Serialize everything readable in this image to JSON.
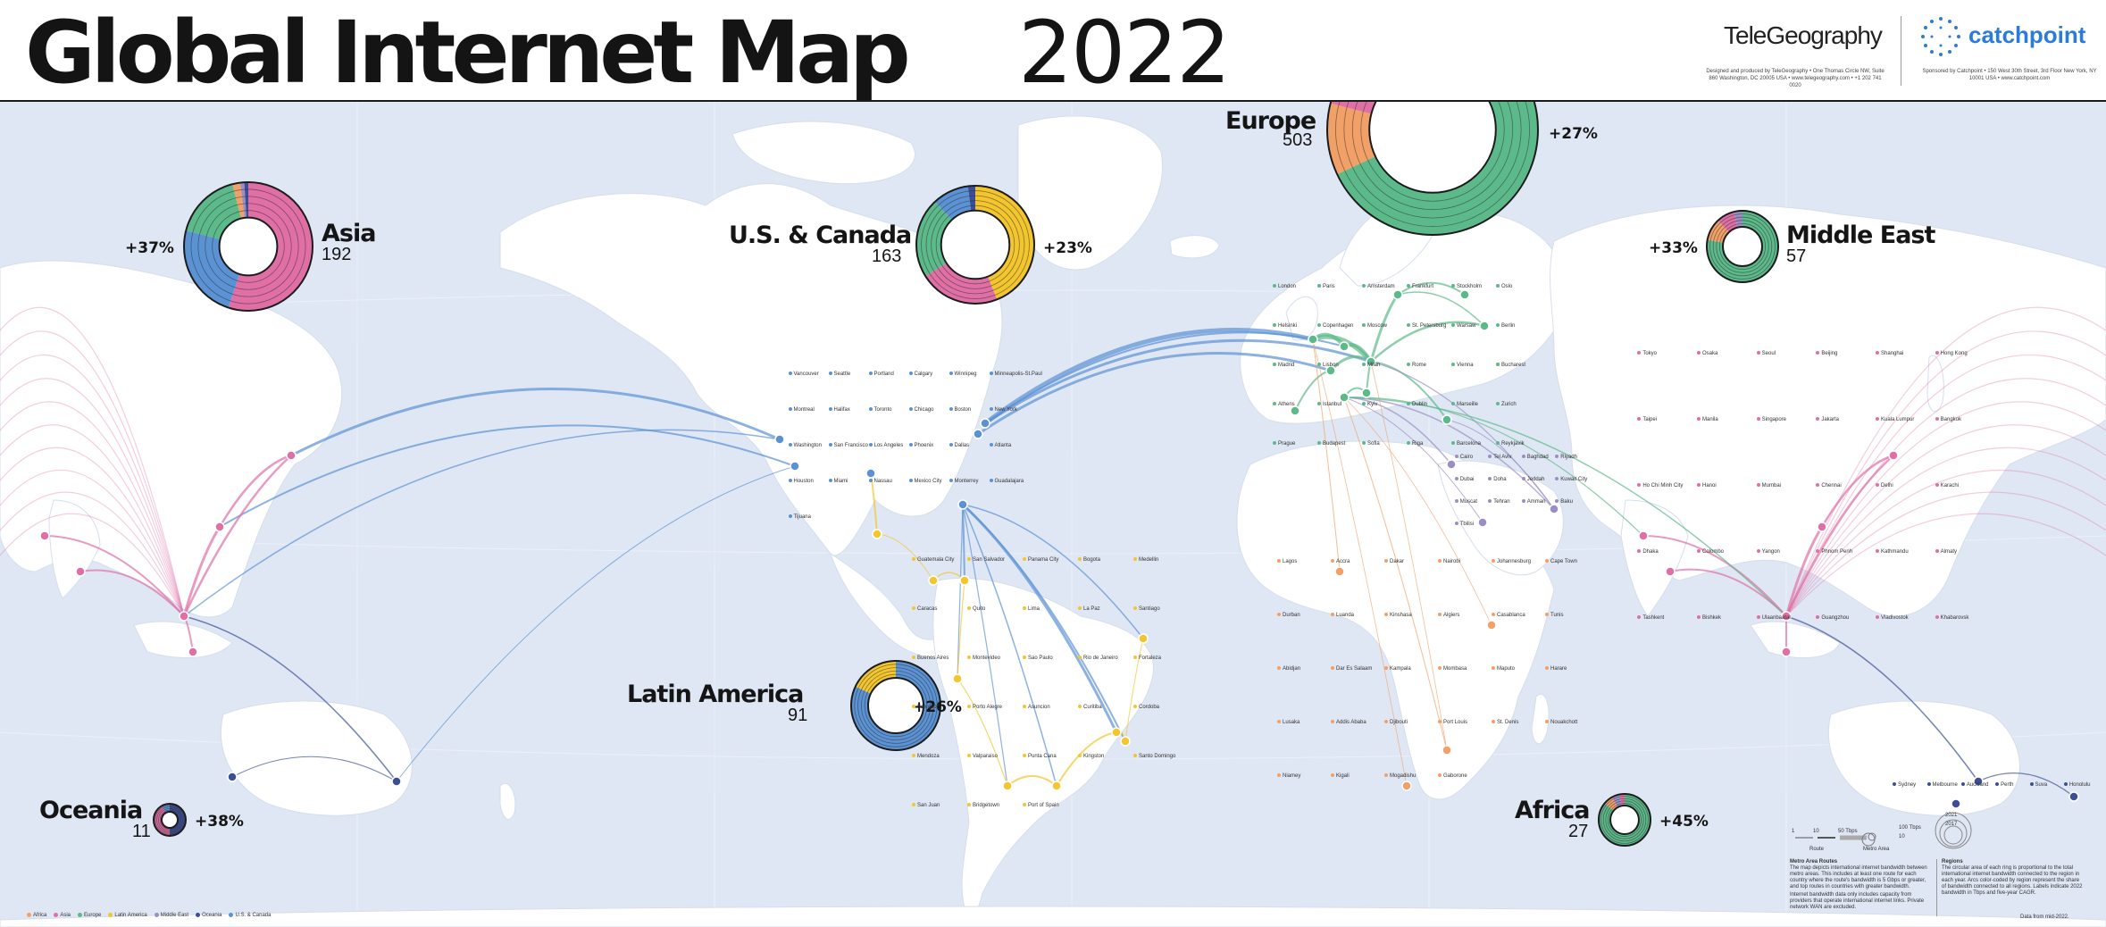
{
  "header": {
    "title_bold": "Global Internet Map",
    "title_year": "2022",
    "telegeography": "TeleGeography",
    "catchpoint": "catchpoint",
    "credit_left": "Designed and produced by TeleGeography • One Thomas Circle NW, Suite 860 Washington, DC 20005 USA • www.telegeography.com • +1 202 741 0020",
    "credit_right": "Sponsored by Catchpoint • 150 West 30th Street, 3rd Floor New York, NY 10001 USA • www.catchpoint.com"
  },
  "colors": {
    "africa": "#f1a067",
    "asia": "#e06fa5",
    "europe": "#5cb98a",
    "latin_america": "#f3c52f",
    "middle_east": "#9b8ec4",
    "oceania": "#3c4f96",
    "us_canada": "#5b92d4"
  },
  "regions": [
    {
      "key": "asia",
      "name": "Asia",
      "count": "192",
      "growth": "+37%",
      "shares": [
        {
          "color": "#e06fa5",
          "value": 0.55
        },
        {
          "color": "#5b92d4",
          "value": 0.24
        },
        {
          "color": "#5cb98a",
          "value": 0.17
        },
        {
          "color": "#f1a067",
          "value": 0.02
        },
        {
          "color": "#9b8ec4",
          "value": 0.01
        },
        {
          "color": "#3c4f96",
          "value": 0.01
        }
      ]
    },
    {
      "key": "us_canada",
      "name": "U.S. & Canada",
      "count": "163",
      "growth": "+23%",
      "shares": [
        {
          "color": "#f3c52f",
          "value": 0.44
        },
        {
          "color": "#e06fa5",
          "value": 0.22
        },
        {
          "color": "#5cb98a",
          "value": 0.22
        },
        {
          "color": "#5b92d4",
          "value": 0.1
        },
        {
          "color": "#3c4f96",
          "value": 0.02
        }
      ]
    },
    {
      "key": "europe",
      "name": "Europe",
      "count": "503",
      "growth": "+27%",
      "shares": [
        {
          "color": "#5cb98a",
          "value": 0.68
        },
        {
          "color": "#f1a067",
          "value": 0.11
        },
        {
          "color": "#e06fa5",
          "value": 0.1
        },
        {
          "color": "#5b92d4",
          "value": 0.07
        },
        {
          "color": "#9b8ec4",
          "value": 0.04
        }
      ]
    },
    {
      "key": "middle_east",
      "name": "Middle East",
      "count": "57",
      "growth": "+33%",
      "shares": [
        {
          "color": "#5cb98a",
          "value": 0.78
        },
        {
          "color": "#f1a067",
          "value": 0.1
        },
        {
          "color": "#e06fa5",
          "value": 0.08
        },
        {
          "color": "#9b8ec4",
          "value": 0.04
        }
      ]
    },
    {
      "key": "latin_america",
      "name": "Latin America",
      "count": "91",
      "growth": "+26%",
      "shares": [
        {
          "color": "#5b92d4",
          "value": 0.82
        },
        {
          "color": "#f3c52f",
          "value": 0.18
        }
      ]
    },
    {
      "key": "oceania",
      "name": "Oceania",
      "count": "11",
      "growth": "+38%",
      "shares": [
        {
          "color": "#3c4f96",
          "value": 0.5
        },
        {
          "color": "#e06fa5",
          "value": 0.42
        },
        {
          "color": "#5b92d4",
          "value": 0.08
        }
      ]
    },
    {
      "key": "africa",
      "name": "Africa",
      "count": "27",
      "growth": "+45%",
      "shares": [
        {
          "color": "#5cb98a",
          "value": 0.86
        },
        {
          "color": "#f1a067",
          "value": 0.06
        },
        {
          "color": "#9b8ec4",
          "value": 0.05
        },
        {
          "color": "#e06fa5",
          "value": 0.03
        }
      ]
    }
  ],
  "cities": {
    "na": [
      "Vancouver",
      "Seattle",
      "Portland",
      "Calgary",
      "Winnipeg",
      "Minneapolis-St.Paul",
      "Montreal",
      "Halifax",
      "Toronto",
      "Chicago",
      "Boston",
      "New York",
      "Washington",
      "San Francisco",
      "Los Angeles",
      "Phoenix",
      "Dallas",
      "Atlanta",
      "Houston",
      "Miami",
      "Nassau",
      "Mexico City",
      "Monterrey",
      "Guadalajara",
      "Tijuana"
    ],
    "la": [
      "Guatemala City",
      "San Salvador",
      "Panama City",
      "Bogota",
      "Medellin",
      "Caracas",
      "Quito",
      "Lima",
      "La Paz",
      "Santiago",
      "Buenos Aires",
      "Montevideo",
      "Sao Paulo",
      "Rio de Janeiro",
      "Fortaleza",
      "Salvador",
      "Porto Alegre",
      "Asuncion",
      "Curitiba",
      "Cordoba",
      "Mendoza",
      "Valparaiso",
      "Punta Cana",
      "Kingston",
      "Santo Domingo",
      "San Juan",
      "Bridgetown",
      "Port of Spain"
    ],
    "eu": [
      "London",
      "Paris",
      "Amsterdam",
      "Frankfurt",
      "Stockholm",
      "Oslo",
      "Helsinki",
      "Copenhagen",
      "Moscow",
      "St. Petersburg",
      "Warsaw",
      "Berlin",
      "Madrid",
      "Lisbon",
      "Milan",
      "Rome",
      "Vienna",
      "Bucharest",
      "Athens",
      "Istanbul",
      "Kyiv",
      "Dublin",
      "Marseille",
      "Zurich",
      "Prague",
      "Budapest",
      "Sofia",
      "Riga",
      "Barcelona",
      "Reykjavik"
    ],
    "me": [
      "Cairo",
      "Tel Aviv",
      "Baghdad",
      "Riyadh",
      "Dubai",
      "Doha",
      "Jeddah",
      "Kuwait City",
      "Muscat",
      "Tehran",
      "Amman",
      "Baku",
      "Tbilisi"
    ],
    "af": [
      "Lagos",
      "Accra",
      "Dakar",
      "Nairobi",
      "Johannesburg",
      "Cape Town",
      "Durban",
      "Luanda",
      "Kinshasa",
      "Algiers",
      "Casablanca",
      "Tunis",
      "Abidjan",
      "Dar Es Salaam",
      "Kampala",
      "Mombasa",
      "Maputo",
      "Harare",
      "Lusaka",
      "Addis Ababa",
      "Djibouti",
      "Port Louis",
      "St. Denis",
      "Nouakchott",
      "Niamey",
      "Kigali",
      "Mogadishu",
      "Gaborone"
    ],
    "as": [
      "Tokyo",
      "Osaka",
      "Seoul",
      "Beijing",
      "Shanghai",
      "Hong Kong",
      "Taipei",
      "Manila",
      "Singapore",
      "Jakarta",
      "Kuala Lumpur",
      "Bangkok",
      "Ho Chi Minh City",
      "Hanoi",
      "Mumbai",
      "Chennai",
      "Delhi",
      "Karachi",
      "Dhaka",
      "Colombo",
      "Yangon",
      "Phnom Penh",
      "Kathmandu",
      "Almaty",
      "Tashkent",
      "Bishkek",
      "Ulaanbaatar",
      "Guangzhou",
      "Vladivostok",
      "Khabarovsk"
    ],
    "oc": [
      "Sydney",
      "Melbourne",
      "Auckland",
      "Perth",
      "Suva",
      "Honolulu"
    ]
  },
  "legend": {
    "items": [
      {
        "label": "Africa",
        "color": "#f1a067"
      },
      {
        "label": "Asia",
        "color": "#e06fa5"
      },
      {
        "label": "Europe",
        "color": "#5cb98a"
      },
      {
        "label": "Latin America",
        "color": "#f3c52f"
      },
      {
        "label": "Middle East",
        "color": "#9b8ec4"
      },
      {
        "label": "Oceania",
        "color": "#3c4f96"
      },
      {
        "label": "U.S. & Canada",
        "color": "#5b92d4"
      }
    ],
    "route_scale": [
      "1",
      "10",
      "50 Tbps"
    ],
    "route_label": "Route",
    "metro_label": "Metro Area",
    "metro_scale": [
      "100 Tbps",
      "10"
    ],
    "year_labels": [
      "2021",
      "2017"
    ],
    "metro_routes_title": "Metro Area Routes",
    "metro_routes_text": "The map depicts international internet bandwidth between metro areas. This includes at least one route for each country where the route's bandwidth is 5 Gbps or greater, and top routes in countries with greater bandwidth.",
    "metro_routes_text2": "Internet bandwidth data only includes capacity from providers that operate international internet links. Private network WAN are excluded.",
    "regions_title": "Regions",
    "regions_text": "The circular area of each ring is proportional to the total international internet bandwidth connected to the region in each year. Arcs color-coded by region represent the share of bandwidth connected to all regions. Labels indicate 2022 bandwidth in Tbps and five-year CAGR.",
    "data_note": "Data from mid-2022."
  }
}
